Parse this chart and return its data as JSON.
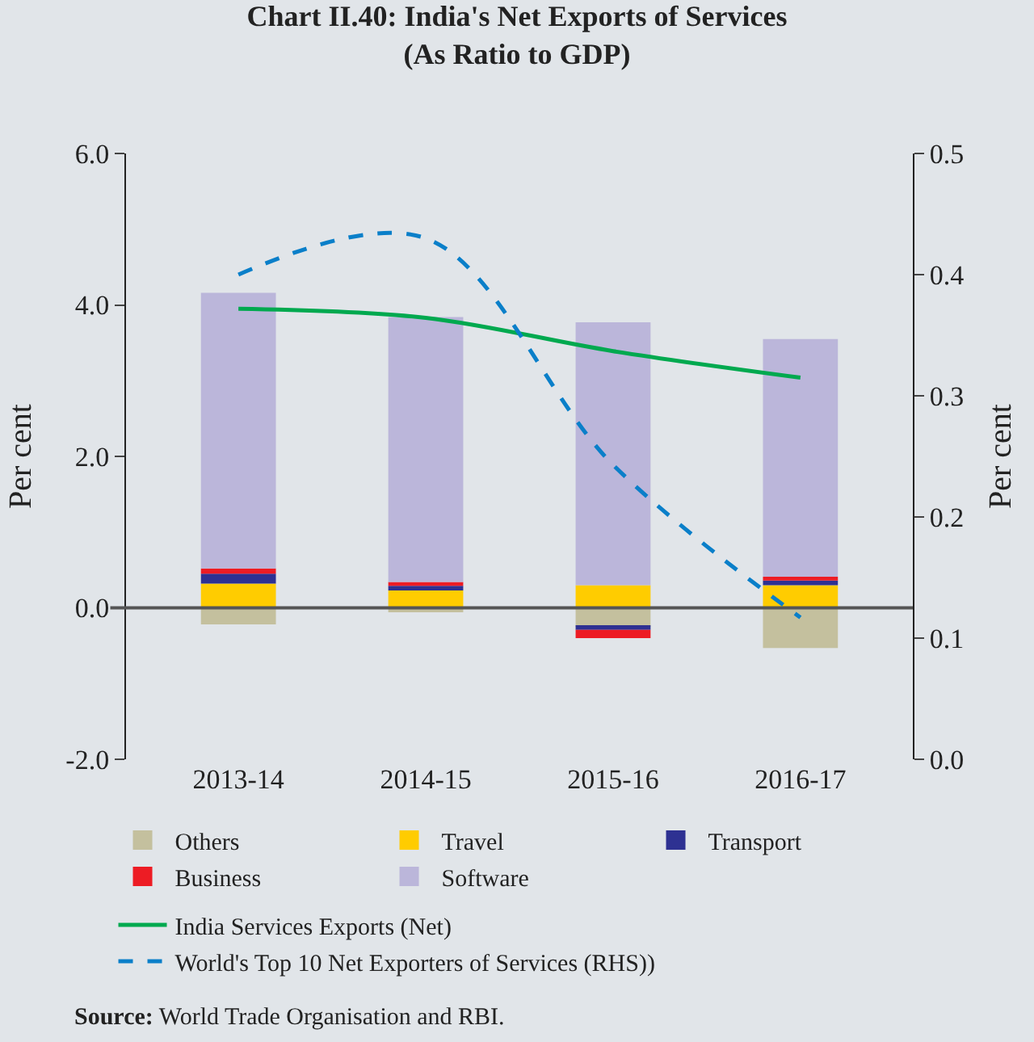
{
  "chart_data": {
    "type": "bar",
    "stacked": true,
    "title": "Chart II.40: India's Net Exports of Services\n(As Ratio to GDP)",
    "categories": [
      "2013-14",
      "2014-15",
      "2015-16",
      "2016-17"
    ],
    "series": [
      {
        "name": "Others",
        "color": "#c4c09e",
        "values": [
          -0.22,
          -0.06,
          -0.25,
          -0.53
        ]
      },
      {
        "name": "Travel",
        "color": "#ffcc00",
        "values": [
          0.32,
          0.23,
          0.3,
          0.3
        ]
      },
      {
        "name": "Transport",
        "color": "#2e3192",
        "values": [
          0.13,
          0.06,
          -0.04,
          0.06
        ]
      },
      {
        "name": "Business",
        "color": "#ed1c24",
        "values": [
          0.07,
          0.05,
          -0.11,
          0.05
        ]
      },
      {
        "name": "Software",
        "color": "#bbb6da",
        "values": [
          3.64,
          3.5,
          3.47,
          3.14
        ]
      },
      {
        "name": "India Services Exports (Net)",
        "type": "line",
        "color": "#00a94f",
        "line_style": "solid",
        "values": [
          3.95,
          3.83,
          3.39,
          3.04
        ]
      },
      {
        "name": "World's Top 10 Net Exporters of Services (RHS))",
        "type": "line",
        "axis": "y2",
        "color": "#0a7fc9",
        "line_style": "dashed",
        "values": [
          0.4,
          0.43,
          0.243,
          0.117
        ]
      }
    ],
    "ylabel": "Per cent",
    "y2label": "Per cent",
    "ylim": [
      -2.0,
      6.0
    ],
    "yticks": [
      {
        "value": -2,
        "label": "-2.0"
      },
      {
        "value": 0,
        "label": "0.0"
      },
      {
        "value": 2,
        "label": "2.0"
      },
      {
        "value": 4,
        "label": "4.0"
      },
      {
        "value": 6,
        "label": "6.0"
      }
    ],
    "y2lim": [
      0.0,
      0.5
    ],
    "y2ticks": [
      {
        "value": 0,
        "label": "0.0"
      },
      0.1,
      0.2,
      0.3,
      0.4,
      0.5
    ],
    "legend": "bottom",
    "marker": "none",
    "annotations": [
      "$^{}$**Source:** World Trade Organisation and RBI."
    ]
  }
}
